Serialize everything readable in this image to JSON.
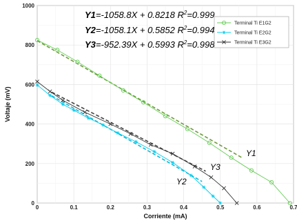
{
  "chart_data": {
    "type": "line",
    "title": "",
    "xlabel": "Corriente (mA)",
    "ylabel": "Voltaje (mV)",
    "xlim": [
      0,
      0.7
    ],
    "ylim": [
      0,
      1000
    ],
    "xticks": [
      "0",
      "0.1",
      "0.2",
      "0.3",
      "0.4",
      "0.5",
      "0.6",
      "0.7"
    ],
    "yticks": [
      "0",
      "200",
      "400",
      "600",
      "800",
      "1000"
    ],
    "grid": true,
    "legend_position": "top-right",
    "series": [
      {
        "name": "Terminal Ti E1G2",
        "color": "#66cc55",
        "marker": "circle",
        "x": [
          0.0,
          0.055,
          0.11,
          0.17,
          0.235,
          0.29,
          0.35,
          0.41,
          0.47,
          0.53,
          0.585,
          0.64,
          0.69
        ],
        "y": [
          825,
          775,
          715,
          645,
          570,
          510,
          440,
          375,
          305,
          230,
          165,
          105,
          0
        ]
      },
      {
        "name": "Terminal Ti E2G2",
        "color": "#00ccee",
        "marker": "star",
        "x": [
          0.0,
          0.035,
          0.07,
          0.1,
          0.14,
          0.18,
          0.22,
          0.27,
          0.32,
          0.37,
          0.42,
          0.455,
          0.48,
          0.5
        ],
        "y": [
          598,
          545,
          500,
          470,
          430,
          395,
          355,
          310,
          260,
          205,
          140,
          80,
          35,
          0
        ]
      },
      {
        "name": "Terminal Ti E3G2",
        "color": "#333333",
        "marker": "x",
        "x": [
          0.0,
          0.035,
          0.07,
          0.13,
          0.2,
          0.255,
          0.31,
          0.37,
          0.43,
          0.475,
          0.51,
          0.545
        ],
        "y": [
          615,
          565,
          520,
          460,
          400,
          350,
          295,
          250,
          185,
          130,
          75,
          0
        ]
      }
    ],
    "fits": [
      {
        "label": "Y1",
        "slope": -1058.8,
        "intercept": 0.8218,
        "r2": "0.999",
        "x_range": [
          0.0,
          0.56
        ],
        "color": "#6e9a3a"
      },
      {
        "label": "Y2",
        "slope": -1058.1,
        "intercept": 0.5852,
        "r2": "0.994",
        "x_range": [
          0.04,
          0.45
        ],
        "color": "#11b8d8"
      },
      {
        "label": "Y3",
        "slope": -952.39,
        "intercept": 0.5993,
        "r2": "0.998",
        "x_range": [
          0.04,
          0.46
        ],
        "color": "#444444"
      }
    ],
    "annotations": {
      "eq1_name": "Y1",
      "eq1_text": "=-1058.8X + 0.8218 R",
      "eq2_name": "Y2",
      "eq2_text": "=-1058.1X + 0.5852 R",
      "eq3_name": "Y3",
      "eq3_text": "=-952.39X + 0.5993 R",
      "sup": "2",
      "eq1_r": "=0.999",
      "eq2_r": "=0.994",
      "eq3_r": "=0.998",
      "y1_label": "Y1",
      "y2_label": "Y2",
      "y3_label": "Y3"
    }
  }
}
